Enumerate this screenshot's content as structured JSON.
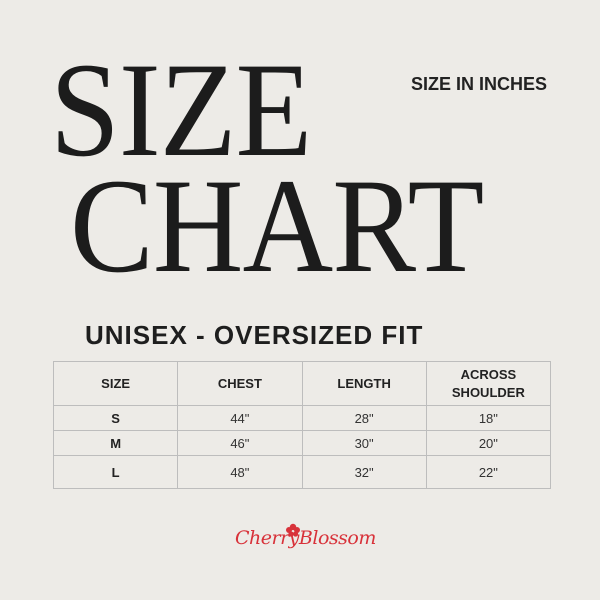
{
  "title_line1": "SIZE",
  "title_line2": "CHART",
  "units_label": "SIZE IN INCHES",
  "fit_label": "UNISEX - OVERSIZED FIT",
  "table": {
    "headers": [
      "SIZE",
      "CHEST",
      "LENGTH",
      "ACROSS SHOULDER"
    ],
    "rows": [
      [
        "S",
        "44\"",
        "28\"",
        "18\""
      ],
      [
        "M",
        "46\"",
        "30\"",
        "20\""
      ],
      [
        "L",
        "48\"",
        "32\"",
        "22\""
      ]
    ]
  },
  "logo": {
    "text": "CherryBlossom",
    "icon": "flower-icon",
    "color": "#d8323a"
  }
}
